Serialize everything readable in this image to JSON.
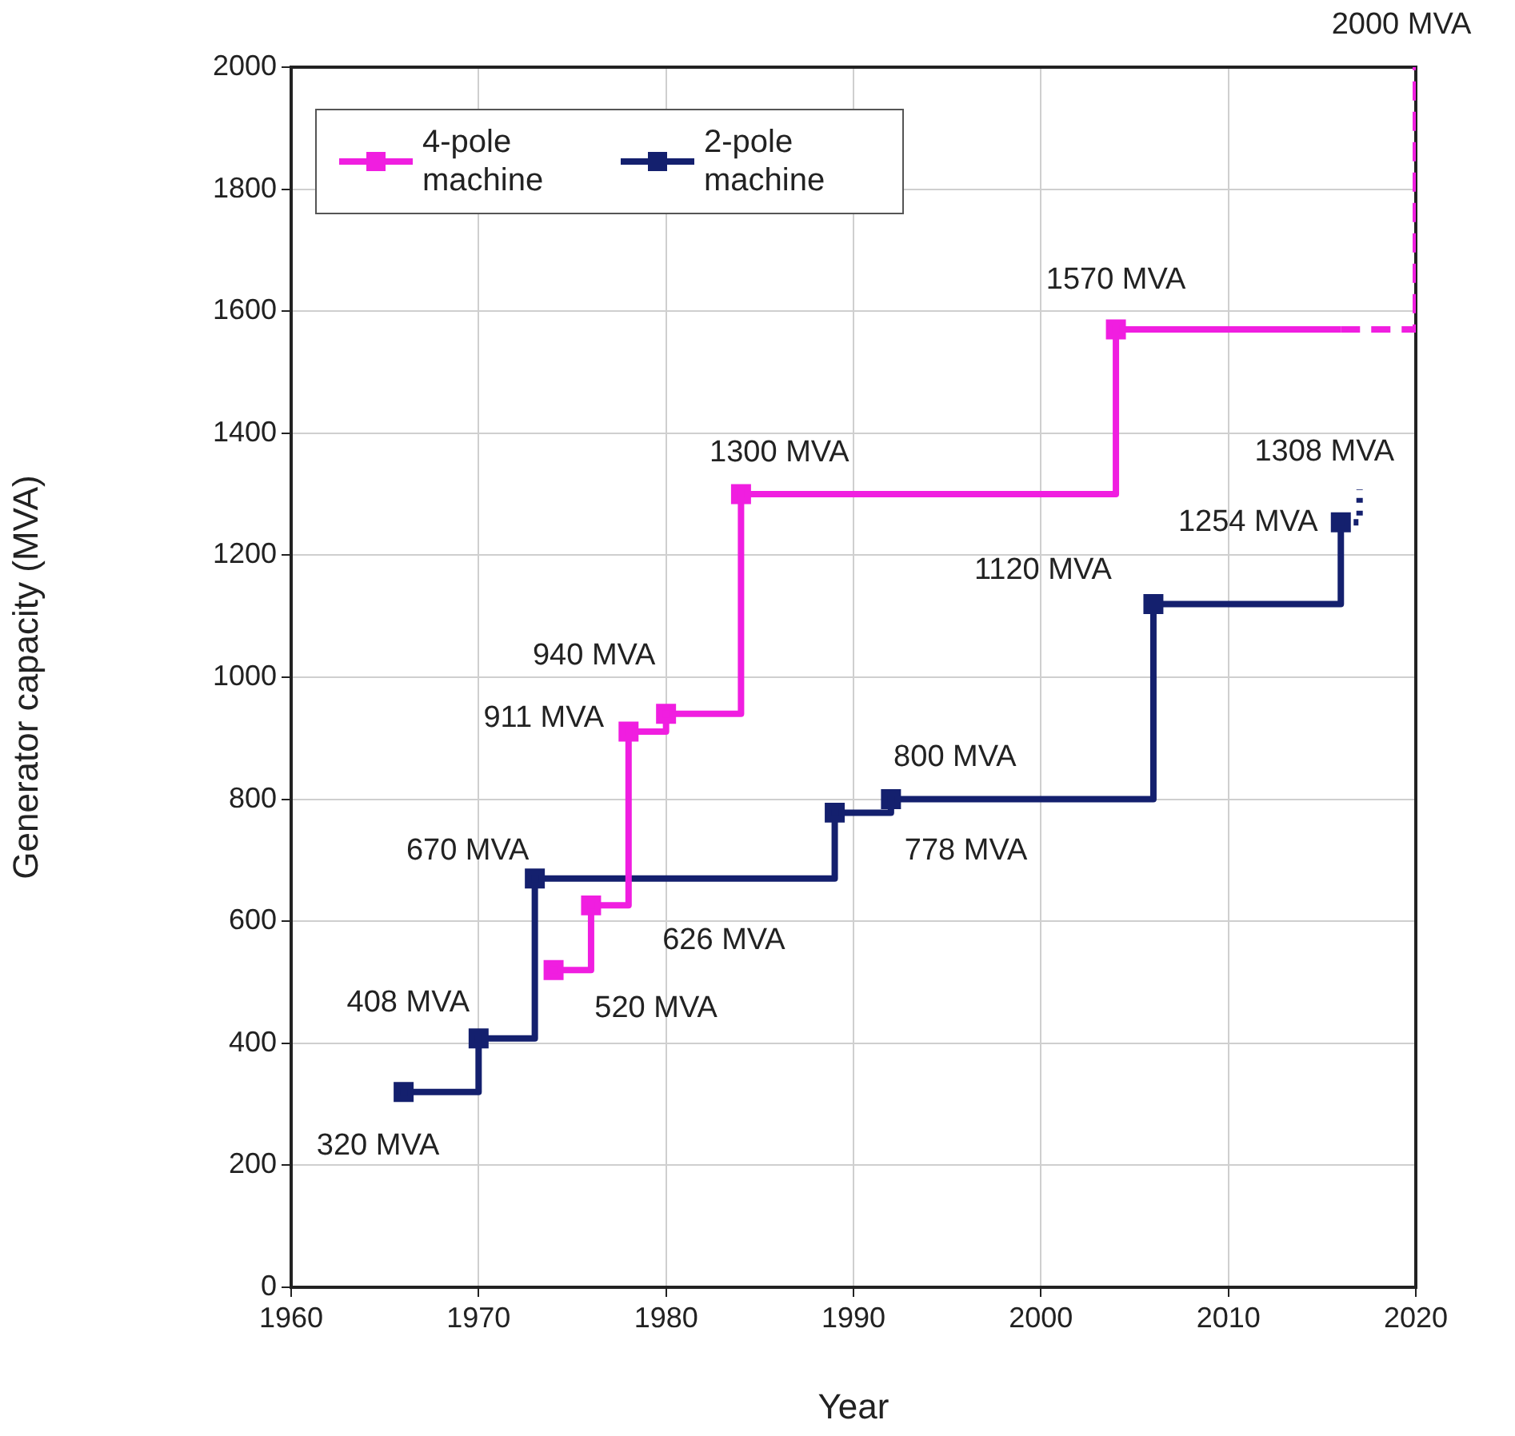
{
  "chart_data": {
    "type": "step",
    "xlabel": "Year",
    "ylabel": "Generator capacity (MVA)",
    "xlim": [
      1960,
      2020
    ],
    "xticks": [
      1960,
      1970,
      1980,
      1990,
      2000,
      2010,
      2020
    ],
    "ylim": [
      0,
      2000
    ],
    "yticks": [
      0,
      200,
      400,
      600,
      800,
      1000,
      1200,
      1400,
      1600,
      1800,
      2000
    ],
    "grid": true,
    "legend": "top left",
    "marker": "square",
    "line_style": "solid",
    "series": [
      {
        "name": "4-pole machine",
        "color": "#f01ee0",
        "x": [
          1974,
          1976,
          1978,
          1980,
          1984,
          2004,
          2016
        ],
        "values": [
          520,
          626,
          911,
          940,
          1300,
          1570,
          1570
        ]
      },
      {
        "name": "2-pole machine",
        "color": "#14206e",
        "x": [
          1966,
          1970,
          1973,
          1989,
          1992,
          2006,
          2016
        ],
        "values": [
          320,
          408,
          670,
          778,
          800,
          1120,
          1254
        ]
      },
      {
        "color": "#f01ee0",
        "x": [
          2016,
          2020,
          2020
        ],
        "values": [
          1570,
          1570,
          2000
        ],
        "marker": "none",
        "line_style": "dashed"
      },
      {
        "color": "#14206e",
        "x": [
          2016,
          2017
        ],
        "values": [
          1254,
          1308
        ],
        "marker": "none",
        "line_style": "dotted"
      }
    ],
    "annotations": [
      {
        "text": "320 MVA",
        "x": 1966,
        "y": 320
      },
      {
        "text": "408 MVA",
        "x": 1970,
        "y": 408
      },
      {
        "text": "670 MVA",
        "x": 1973,
        "y": 670
      },
      {
        "text": "520 MVA",
        "x": 1974,
        "y": 520
      },
      {
        "text": "626 MVA",
        "x": 1976,
        "y": 626
      },
      {
        "text": "911 MVA",
        "x": 1978,
        "y": 911
      },
      {
        "text": "940 MVA",
        "x": 1980,
        "y": 940
      },
      {
        "text": "1300 MVA",
        "x": 1984,
        "y": 1300
      },
      {
        "text": "778 MVA",
        "x": 1989,
        "y": 778
      },
      {
        "text": "800 MVA",
        "x": 1992,
        "y": 800
      },
      {
        "text": "1120 MVA",
        "x": 2006,
        "y": 1120
      },
      {
        "text": "1254 MVA",
        "x": 2016,
        "y": 1254
      },
      {
        "text": "1308 MVA",
        "x": 2017,
        "y": 1308
      },
      {
        "text": "1570 MVA",
        "x": 2004,
        "y": 1570
      },
      {
        "text": "2000 MVA",
        "x": 2020,
        "y": 2000
      }
    ]
  }
}
